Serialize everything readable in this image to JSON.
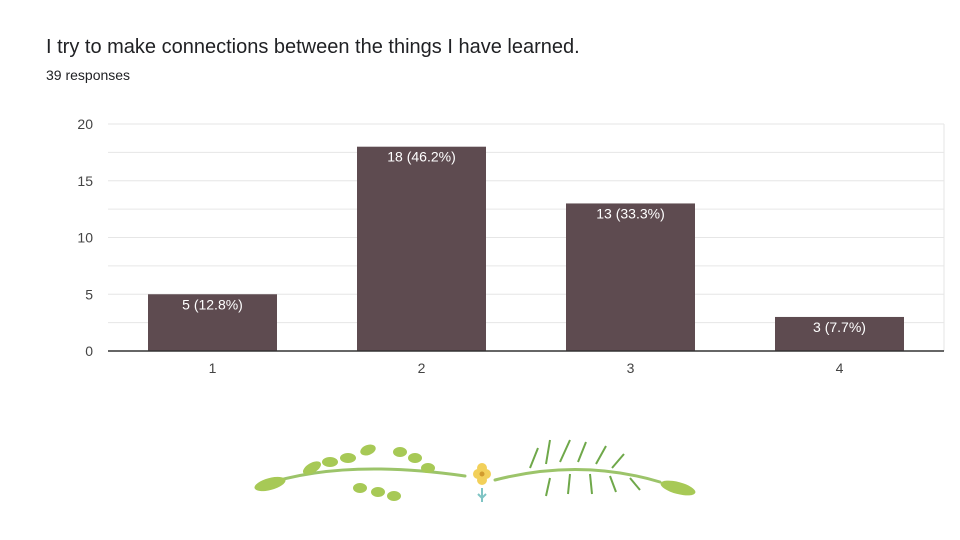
{
  "question": {
    "title": "I try to make connections between the things I have learned.",
    "responses": "39 responses"
  },
  "colors": {
    "bar": "#5e4b50",
    "grid": "#e6e6e6",
    "axis": "#333333",
    "leaf": "#8bbf5a",
    "flower": "#f2d05a"
  },
  "chart_data": {
    "type": "bar",
    "title": "I try to make connections between the things I have learned.",
    "xlabel": "",
    "ylabel": "",
    "categories": [
      "1",
      "2",
      "3",
      "4"
    ],
    "values": [
      5,
      18,
      13,
      3
    ],
    "data_labels": [
      "5 (12.8%)",
      "18 (46.2%)",
      "13 (33.3%)",
      "3 (7.7%)"
    ],
    "yticks": [
      0,
      5,
      10,
      15,
      20
    ],
    "ylim": [
      0,
      20
    ],
    "grid": true,
    "legend": "none"
  },
  "decoration": {
    "name": "leaf-ornament"
  }
}
